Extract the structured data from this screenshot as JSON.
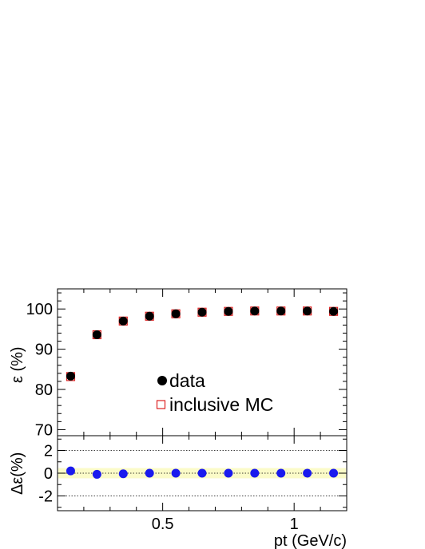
{
  "chart_data": [
    {
      "type": "scatter",
      "panel": "efficiency",
      "ylabel": "ε (%)",
      "xlim": [
        0.1,
        1.2
      ],
      "ylim": [
        68.5,
        105
      ],
      "yticks": [
        70,
        80,
        90,
        100
      ],
      "series": [
        {
          "name": "data",
          "marker": "filled-circle",
          "color": "#000000",
          "x": [
            0.15,
            0.25,
            0.35,
            0.45,
            0.55,
            0.65,
            0.75,
            0.85,
            0.95,
            1.05,
            1.15
          ],
          "y": [
            83.3,
            93.6,
            97.0,
            98.2,
            98.8,
            99.2,
            99.4,
            99.5,
            99.5,
            99.5,
            99.4
          ]
        },
        {
          "name": "inclusive MC",
          "marker": "open-square",
          "color": "#dd2222",
          "x": [
            0.15,
            0.25,
            0.35,
            0.45,
            0.55,
            0.65,
            0.75,
            0.85,
            0.95,
            1.05,
            1.15
          ],
          "y": [
            83.2,
            93.6,
            97.0,
            98.2,
            98.8,
            99.2,
            99.4,
            99.5,
            99.5,
            99.5,
            99.4
          ]
        }
      ],
      "legend": {
        "placement": "center",
        "entries": [
          "data",
          "inclusive MC"
        ]
      },
      "grid": false
    },
    {
      "type": "scatter",
      "panel": "difference",
      "xlabel": "pt (GeV/c)",
      "ylabel": "Δε(%)",
      "xlim": [
        0.1,
        1.2
      ],
      "ylim": [
        -3.3,
        3.3
      ],
      "xticks": [
        0.5,
        1
      ],
      "xtick_labels": [
        "0.5",
        "1"
      ],
      "yticks": [
        -2,
        0,
        2
      ],
      "ytick_labels": [
        "-2",
        "0",
        "2"
      ],
      "reference_lines": [
        -2,
        0,
        2
      ],
      "band": [
        -0.45,
        0.45
      ],
      "series": [
        {
          "marker": "filled-circle",
          "color": "#1a1aee",
          "x": [
            0.15,
            0.25,
            0.35,
            0.45,
            0.55,
            0.65,
            0.75,
            0.85,
            0.95,
            1.05,
            1.15
          ],
          "y": [
            0.2,
            -0.1,
            -0.05,
            0.0,
            0.0,
            0.0,
            0.0,
            0.0,
            0.0,
            0.0,
            0.0
          ]
        }
      ],
      "grid": false
    }
  ],
  "colors": {
    "band": "#fbfbc8",
    "data": "#000000",
    "mc": "#dd2222",
    "diff": "#1a1aee"
  }
}
